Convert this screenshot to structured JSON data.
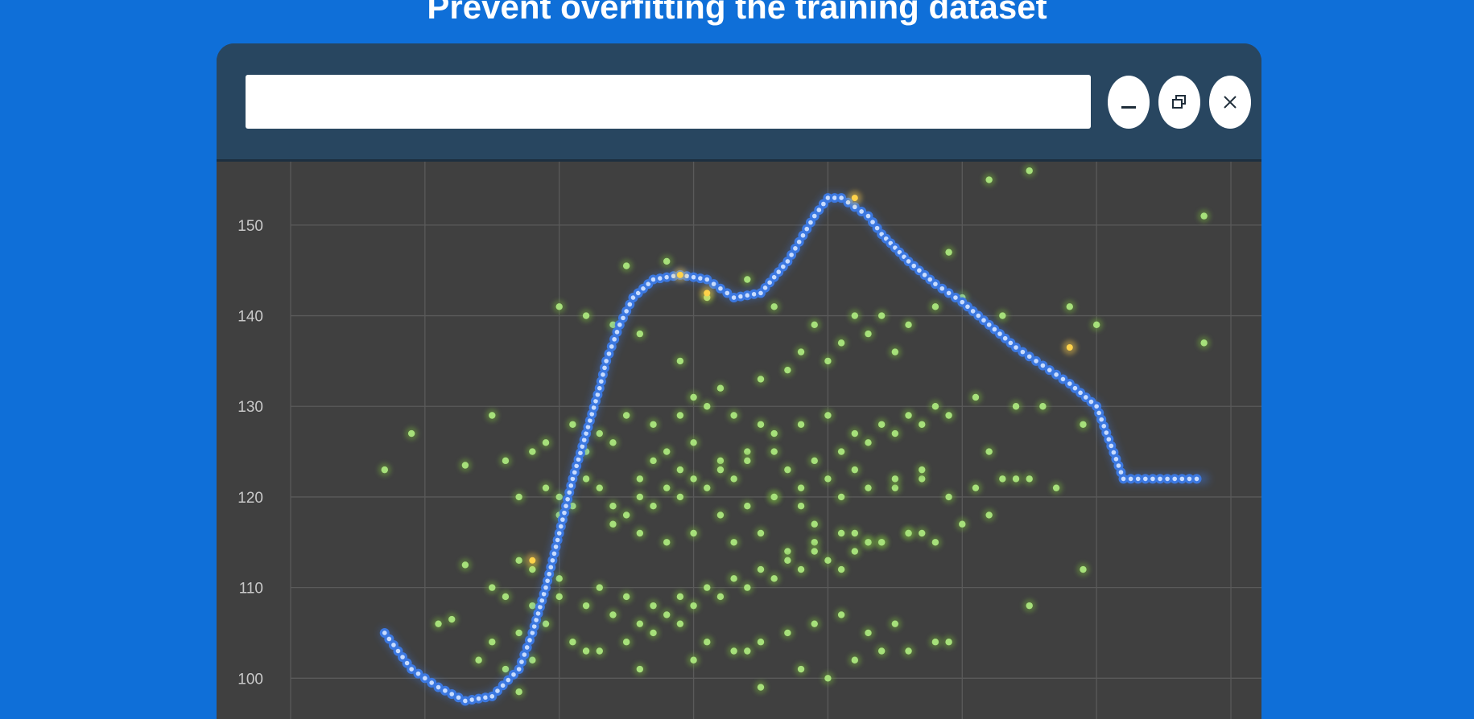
{
  "slide": {
    "title": "Prevent overfitting the training dataset"
  },
  "window": {
    "address_value": "",
    "minimize_icon": "minimize-icon",
    "restore_icon": "restore-icon",
    "close_icon": "close-icon"
  },
  "colors": {
    "background": "#0f6fd8",
    "titlebar": "#284660",
    "plot_bg": "#404040",
    "data_points": "#a6e07a",
    "fit_curve": "#3c78e0",
    "fit_curve_core": "#c8dcff",
    "highlight": "#ffd24a"
  },
  "chart_data": {
    "type": "scatter",
    "title": "",
    "xlabel": "",
    "ylabel": "",
    "y_ticks": [
      100,
      110,
      120,
      130,
      140,
      150
    ],
    "xlim": [
      0,
      7
    ],
    "ylim": [
      95.5,
      157
    ],
    "grid": true,
    "series": [
      {
        "style": "points",
        "x": [
          0.7,
          0.9,
          1.3,
          1.7,
          1.2,
          1.5,
          1.3,
          1.1,
          1.4,
          2.0,
          2.2,
          2.5,
          2.8,
          3.1,
          3.4,
          3.6,
          3.9,
          4.2,
          4.5,
          4.9,
          5.2,
          5.5,
          5.8,
          6.0,
          6.8,
          6.8,
          2.4,
          2.6,
          2.9,
          3.0,
          3.2,
          3.5,
          3.7,
          3.8,
          4.0,
          4.1,
          4.3,
          4.4,
          4.6,
          4.8,
          5.0,
          5.3,
          2.1,
          2.3,
          2.5,
          2.7,
          2.9,
          3.1,
          3.3,
          3.5,
          3.6,
          3.8,
          4.0,
          4.2,
          4.4,
          4.6,
          4.8,
          5.1,
          5.4,
          2.2,
          2.4,
          2.7,
          2.8,
          3.0,
          3.2,
          3.4,
          3.7,
          3.9,
          4.1,
          4.3,
          4.5,
          4.7,
          4.9,
          5.2,
          2.0,
          2.3,
          2.6,
          2.9,
          3.1,
          3.3,
          3.6,
          3.8,
          4.0,
          4.2,
          4.5,
          4.7,
          4.9,
          5.1,
          5.3,
          5.6,
          5.9,
          2.4,
          2.6,
          2.8,
          3.0,
          3.3,
          3.5,
          3.7,
          3.9,
          4.1,
          4.3,
          4.6,
          4.8,
          5.0,
          5.5,
          2.1,
          2.5,
          2.7,
          2.9,
          3.2,
          3.4,
          3.6,
          3.9,
          4.2,
          4.4,
          4.7,
          1.6,
          1.8,
          1.9,
          2.0,
          1.7,
          1.9,
          2.2,
          2.4,
          2.6,
          2.8,
          3.0,
          3.2,
          3.4,
          3.6,
          3.8,
          4.1,
          4.3,
          4.5,
          4.7,
          5.2,
          5.4,
          5.7,
          1.7,
          1.8,
          2.0,
          2.3,
          2.5,
          2.7,
          2.9,
          3.1,
          3.3,
          3.5,
          3.7,
          3.9,
          4.1,
          4.3,
          4.6,
          1.5,
          1.6,
          1.8,
          2.0,
          2.2,
          2.4,
          2.6,
          2.8,
          3.0,
          3.2,
          3.4,
          3.6,
          3.8,
          4.0,
          4.2,
          4.4,
          1.5,
          1.7,
          1.9,
          2.1,
          2.3,
          2.5,
          2.7,
          2.9,
          3.1,
          3.3,
          3.5,
          3.7,
          3.9,
          4.1,
          4.3,
          4.5,
          4.8,
          1.6,
          1.8,
          2.2,
          2.6,
          3.0,
          3.4,
          3.8,
          4.2,
          4.6,
          4.9,
          5.5,
          5.9,
          3.5,
          4.0,
          4.4
        ],
        "y": [
          123,
          127,
          123.5,
          98.5,
          106.5,
          129,
          112.5,
          106,
          102,
          141,
          140,
          145.5,
          146,
          142,
          144,
          141,
          139,
          140,
          136,
          147,
          155,
          156,
          141,
          139,
          137,
          151,
          139,
          138,
          135,
          131,
          132,
          133,
          134,
          136,
          135,
          137,
          138,
          140,
          139,
          141,
          142,
          140,
          128,
          127,
          129,
          128,
          129,
          130,
          129,
          128,
          127,
          128,
          129,
          127,
          128,
          129,
          130,
          131,
          130,
          125,
          126,
          124,
          125,
          126,
          124,
          125,
          123,
          124,
          125,
          126,
          127,
          128,
          129,
          125,
          120,
          121,
          122,
          123,
          121,
          122,
          120,
          121,
          122,
          123,
          121,
          122,
          120,
          121,
          122,
          130,
          128,
          117,
          116,
          115,
          116,
          115,
          116,
          114,
          115,
          116,
          115,
          116,
          115,
          117,
          122,
          119,
          118,
          119,
          120,
          118,
          119,
          120,
          117,
          116,
          115,
          116,
          124,
          125,
          126,
          118,
          120,
          121,
          122,
          119,
          120,
          121,
          122,
          123,
          124,
          125,
          119,
          120,
          121,
          122,
          123,
          118,
          122,
          121,
          113,
          112,
          111,
          110,
          109,
          108,
          109,
          110,
          111,
          112,
          113,
          114,
          112,
          115,
          116,
          110,
          109,
          108,
          109,
          108,
          107,
          106,
          107,
          108,
          109,
          110,
          111,
          112,
          113,
          114,
          115,
          104,
          105,
          106,
          104,
          103,
          104,
          105,
          106,
          104,
          103,
          104,
          105,
          106,
          107,
          105,
          106,
          104,
          101,
          102,
          103,
          101,
          102,
          103,
          101,
          102,
          103,
          104,
          108,
          112,
          99,
          100,
          103
        ]
      },
      {
        "style": "curve",
        "x": [
          0.7,
          0.9,
          1.1,
          1.3,
          1.5,
          1.7,
          1.8,
          1.9,
          2.0,
          2.1,
          2.2,
          2.3,
          2.35,
          2.45,
          2.55,
          2.7,
          2.9,
          3.1,
          3.3,
          3.5,
          3.7,
          3.9,
          4.0,
          4.1,
          4.2,
          4.3,
          4.4,
          4.5,
          4.6,
          4.8,
          5.0,
          5.2,
          5.4,
          5.6,
          5.8,
          6.0,
          6.2,
          6.8
        ],
        "y": [
          105,
          101,
          99,
          97.5,
          98,
          101,
          105,
          110,
          116,
          122,
          127,
          132,
          135,
          139,
          142,
          144,
          144.5,
          144,
          142,
          142.5,
          146,
          151,
          153,
          153,
          152,
          151,
          149,
          147.5,
          146,
          143.5,
          141.5,
          139,
          136.5,
          134.5,
          132.5,
          130,
          122,
          122
        ],
        "highlight_points": [
          [
            1.8,
            113
          ],
          [
            2.9,
            144.5
          ],
          [
            3.1,
            142.5
          ],
          [
            4.2,
            153
          ],
          [
            5.8,
            136.5
          ]
        ]
      }
    ]
  }
}
